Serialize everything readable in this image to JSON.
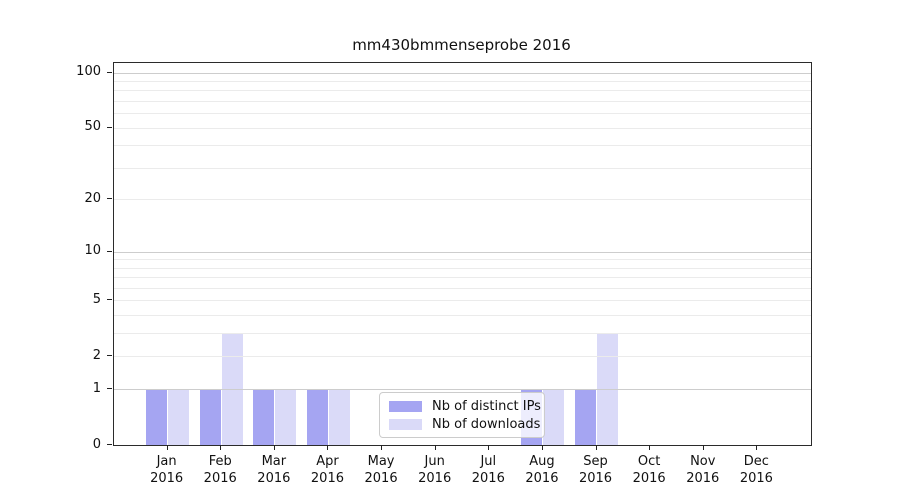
{
  "title": "mm430bmmenseprobe 2016",
  "chart_data": {
    "type": "bar",
    "title": "mm430bmmenseprobe 2016",
    "categories": [
      "Jan",
      "Feb",
      "Mar",
      "Apr",
      "May",
      "Jun",
      "Jul",
      "Aug",
      "Sep",
      "Oct",
      "Nov",
      "Dec"
    ],
    "year": "2016",
    "series": [
      {
        "name": "Nb of distinct IPs",
        "key": "distinct-ips",
        "color": "#a5a5f2",
        "values": [
          1,
          1,
          1,
          1,
          0,
          0,
          0,
          1,
          1,
          0,
          0,
          0
        ]
      },
      {
        "name": "Nb of downloads",
        "key": "downloads",
        "color": "#dadaf8",
        "values": [
          1,
          3,
          1,
          1,
          0,
          0,
          0,
          1,
          3,
          0,
          0,
          0
        ]
      }
    ],
    "xlabel": "",
    "ylabel": "",
    "y_axis": {
      "scale": "log1p",
      "tick_values": [
        0,
        1,
        2,
        5,
        10,
        20,
        50,
        100
      ],
      "major_gridlines": [
        1,
        10,
        100
      ],
      "minor_gridlines": [
        2,
        3,
        4,
        5,
        6,
        7,
        8,
        9,
        20,
        30,
        40,
        50,
        60,
        70,
        80,
        90
      ],
      "top_value": 112.9,
      "ylim": [
        0,
        112.9
      ]
    },
    "grid": "horizontal",
    "legend_position": "lower center-right, inside axes"
  }
}
